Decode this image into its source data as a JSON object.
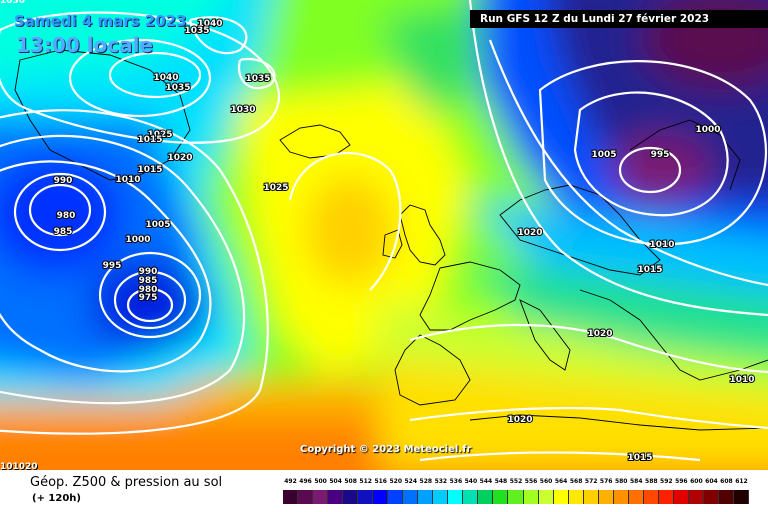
{
  "header": {
    "date_line": "Samedi 4 mars 2023",
    "local_time": "13:00 locale",
    "run_info": "Run GFS 12 Z du Lundi 27 février 2023",
    "corner_top": "1030",
    "corner_bottom": "101020"
  },
  "copyright": "Copyright © 2023 Meteociel.fr",
  "footer": {
    "title": "Géop. Z500 & pression au sol",
    "subtitle": "(+ 120h)"
  },
  "legend": {
    "labels": [
      "492",
      "496",
      "500",
      "504",
      "508",
      "512",
      "516",
      "520",
      "524",
      "528",
      "532",
      "536",
      "540",
      "544",
      "548",
      "552",
      "556",
      "560",
      "564",
      "568",
      "572",
      "576",
      "580",
      "584",
      "588",
      "592",
      "596",
      "600",
      "604",
      "608",
      "612"
    ],
    "colors": [
      "#3a0030",
      "#5a0a50",
      "#7a1a70",
      "#4b0082",
      "#1a0a8a",
      "#1010c0",
      "#0000ff",
      "#0040ff",
      "#0070ff",
      "#00a0ff",
      "#00ccff",
      "#00ffff",
      "#00e0b0",
      "#00d060",
      "#20e020",
      "#60f020",
      "#a0ff20",
      "#ccff30",
      "#ffff00",
      "#ffe800",
      "#ffd000",
      "#ffb000",
      "#ff9000",
      "#ff7000",
      "#ff4800",
      "#ff2000",
      "#e00000",
      "#b00000",
      "#800000",
      "#500000",
      "#200000"
    ]
  },
  "isobar_labels": [
    {
      "text": "1040"
    },
    {
      "text": "1035"
    },
    {
      "text": "1040"
    },
    {
      "text": "1035"
    },
    {
      "text": "1035"
    },
    {
      "text": "1030"
    },
    {
      "text": "1025"
    },
    {
      "text": "1015"
    },
    {
      "text": "1020"
    },
    {
      "text": "1010"
    },
    {
      "text": "1015"
    },
    {
      "text": "1025"
    },
    {
      "text": "990"
    },
    {
      "text": "980"
    },
    {
      "text": "985"
    },
    {
      "text": "1005"
    },
    {
      "text": "1000"
    },
    {
      "text": "995"
    },
    {
      "text": "990"
    },
    {
      "text": "985"
    },
    {
      "text": "980"
    },
    {
      "text": "975"
    },
    {
      "text": "1005"
    },
    {
      "text": "995"
    },
    {
      "text": "1000"
    },
    {
      "text": "1020"
    },
    {
      "text": "1010"
    },
    {
      "text": "1015"
    },
    {
      "text": "1020"
    },
    {
      "text": "1010"
    },
    {
      "text": "1020"
    },
    {
      "text": "1015"
    }
  ],
  "colors": {
    "low_purple": "#5a0a50",
    "deep_blue": "#0000ff",
    "cyan": "#00ffff",
    "green": "#20e020",
    "yellow": "#ffff00",
    "orange": "#ff9000",
    "isobar": "#ffffff"
  }
}
